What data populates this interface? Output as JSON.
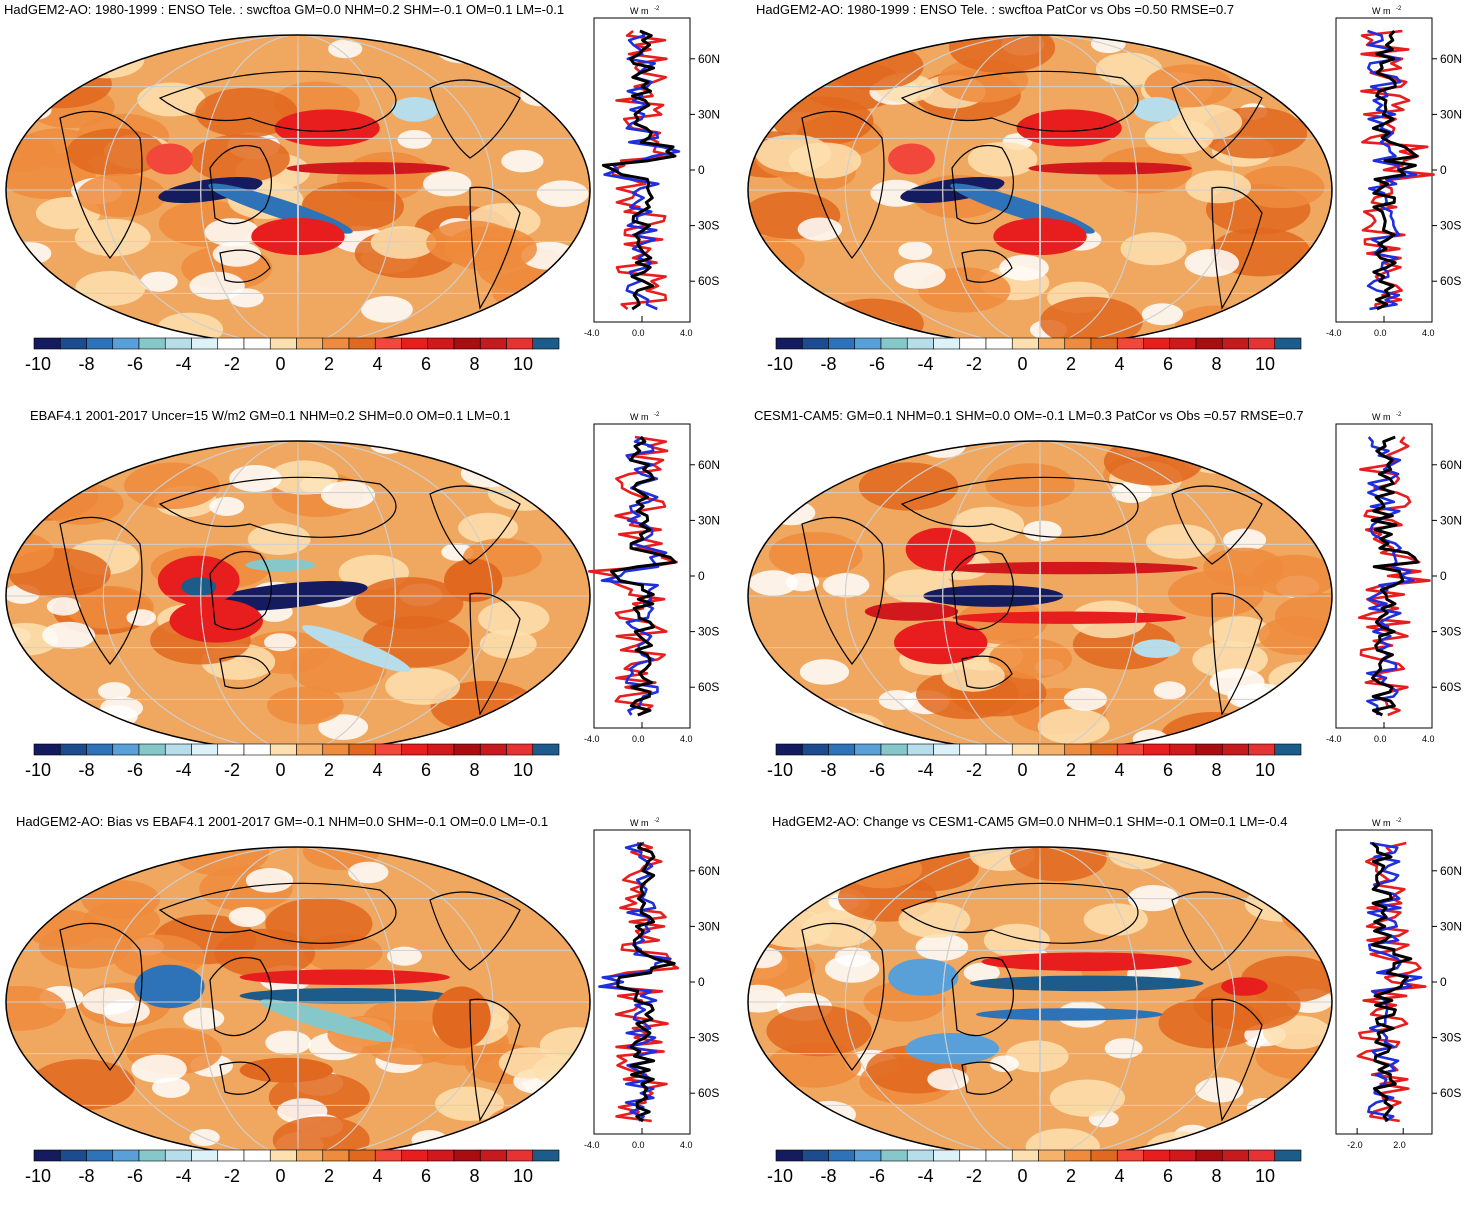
{
  "figure": {
    "units_label": "W m",
    "units_exp": "-2",
    "colorbar_ticks": [
      "-10",
      "-8",
      "-6",
      "-4",
      "-2",
      "0",
      "2",
      "4",
      "6",
      "8",
      "10"
    ],
    "colorbar_colors": [
      "#141b5e",
      "#1d4c8e",
      "#2e73b8",
      "#5aa0d8",
      "#86c7c9",
      "#b6dde9",
      "#ddf1f8",
      "#ffffff",
      "#ffffff",
      "#fde0b0",
      "#f6b26b",
      "#ee8b3c",
      "#e0691f",
      "#f2483c",
      "#e81d1d",
      "#d1181c",
      "#a80d10",
      "#c51a1e",
      "#e63232",
      "#1d5c8a"
    ],
    "lat_ticks": [
      "60N",
      "30N",
      "0",
      "30S",
      "60S"
    ]
  },
  "panels": [
    {
      "title": "HadGEM2-AO: 1980-1999 : ENSO Tele. : swcftoa GM=0.0 NHM=0.2 SHM=-0.1 OM=0.1 LM=-0.1",
      "x_ticks": [
        "-4.0",
        "0.0",
        "4.0"
      ]
    },
    {
      "title": "HadGEM2-AO: 1980-1999 : ENSO Tele. : swcftoa PatCor vs Obs =0.50 RMSE=0.7",
      "x_ticks": [
        "-4.0",
        "0.0",
        "4.0"
      ]
    },
    {
      "title": "EBAF4.1 2001-2017 Uncer=15 W/m2 GM=0.1 NHM=0.2 SHM=0.0 OM=0.1 LM=0.1",
      "x_ticks": [
        "-4.0",
        "0.0",
        "4.0"
      ]
    },
    {
      "title": "CESM1-CAM5: GM=0.1 NHM=0.1 SHM=0.0 OM=-0.1 LM=0.3 PatCor vs Obs =0.57 RMSE=0.7",
      "x_ticks": [
        "-4.0",
        "0.0",
        "4.0"
      ]
    },
    {
      "title": "HadGEM2-AO: Bias vs EBAF4.1 2001-2017 GM=-0.1 NHM=0.0 SHM=-0.1 OM=0.0 LM=-0.1",
      "x_ticks": [
        "-4.0",
        "0.0",
        "4.0"
      ]
    },
    {
      "title": "HadGEM2-AO: Change vs CESM1-CAM5 GM=0.0 NHM=0.1 SHM=-0.1 OM=0.1 LM=-0.4",
      "x_ticks": [
        "-2.0",
        "2.0"
      ]
    }
  ]
}
